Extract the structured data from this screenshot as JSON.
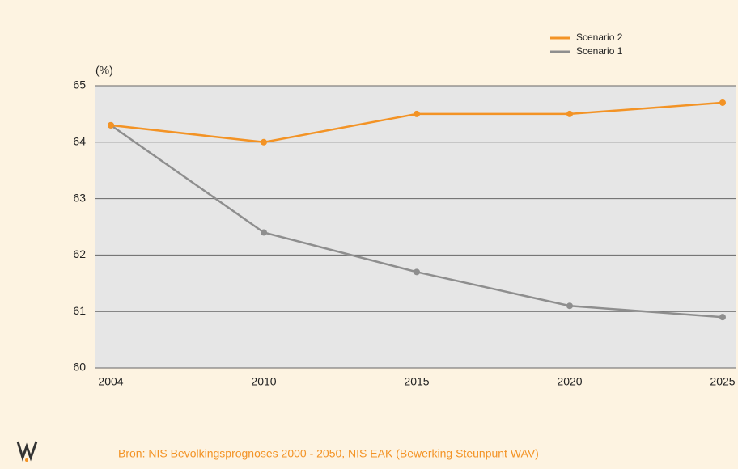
{
  "chart_data": {
    "type": "line",
    "y_label": "(%)",
    "categories": [
      "2004",
      "2010",
      "2015",
      "2020",
      "2025"
    ],
    "series": [
      {
        "name": "Scenario 2",
        "color": "#f39325",
        "values": [
          64.3,
          64.0,
          64.5,
          64.5,
          64.7
        ]
      },
      {
        "name": "Scenario 1",
        "color": "#8e8e8e",
        "values": [
          64.3,
          62.4,
          61.7,
          61.1,
          60.9
        ]
      }
    ],
    "ylim": [
      60,
      65
    ],
    "yticks": [
      60,
      61,
      62,
      63,
      64,
      65
    ],
    "grid": true,
    "legend": "top-right",
    "source": "Bron: NIS Bevolkingsprognoses 2000 - 2050, NIS EAK (Bewerking Steunpunt WAV)"
  }
}
